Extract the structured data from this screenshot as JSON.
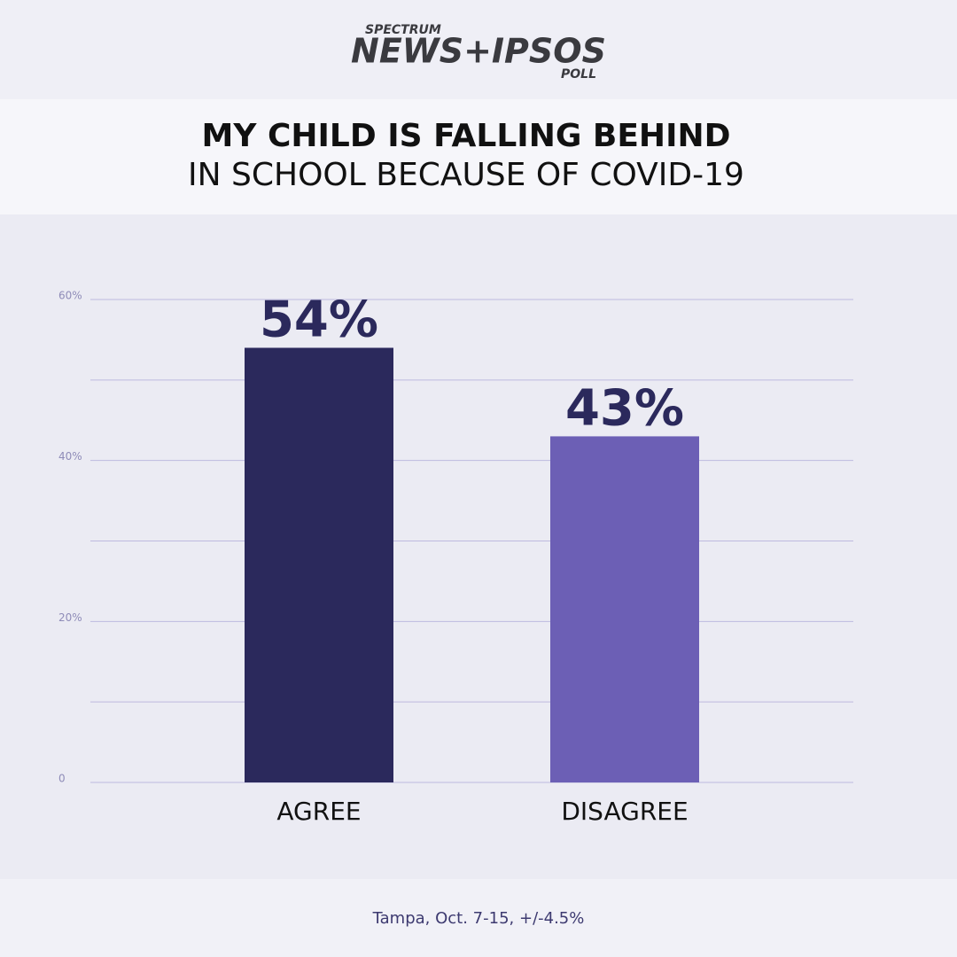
{
  "chart_data": {
    "type": "bar",
    "brand": {
      "top": "SPECTRUM",
      "main": "NEWS+IPSOS",
      "bottom": "POLL"
    },
    "title": "MY CHILD IS FALLING BEHIND",
    "subtitle": "IN SCHOOL BECAUSE OF COVID-19",
    "categories": [
      "AGREE",
      "DISAGREE"
    ],
    "values": [
      54,
      43
    ],
    "value_labels": [
      "54%",
      "43%"
    ],
    "colors": [
      "#2b295c",
      "#6c5fb5"
    ],
    "ylim": [
      0,
      60
    ],
    "yticks": [
      0,
      {
        "value": 20,
        "label": "20%"
      },
      {
        "value": 40,
        "label": "40%"
      },
      {
        "value": 60,
        "label": "60%"
      }
    ],
    "yminorticks": [
      10,
      30,
      50
    ],
    "grid": true,
    "footnote": "Tampa, Oct. 7-15, +/-4.5%"
  }
}
